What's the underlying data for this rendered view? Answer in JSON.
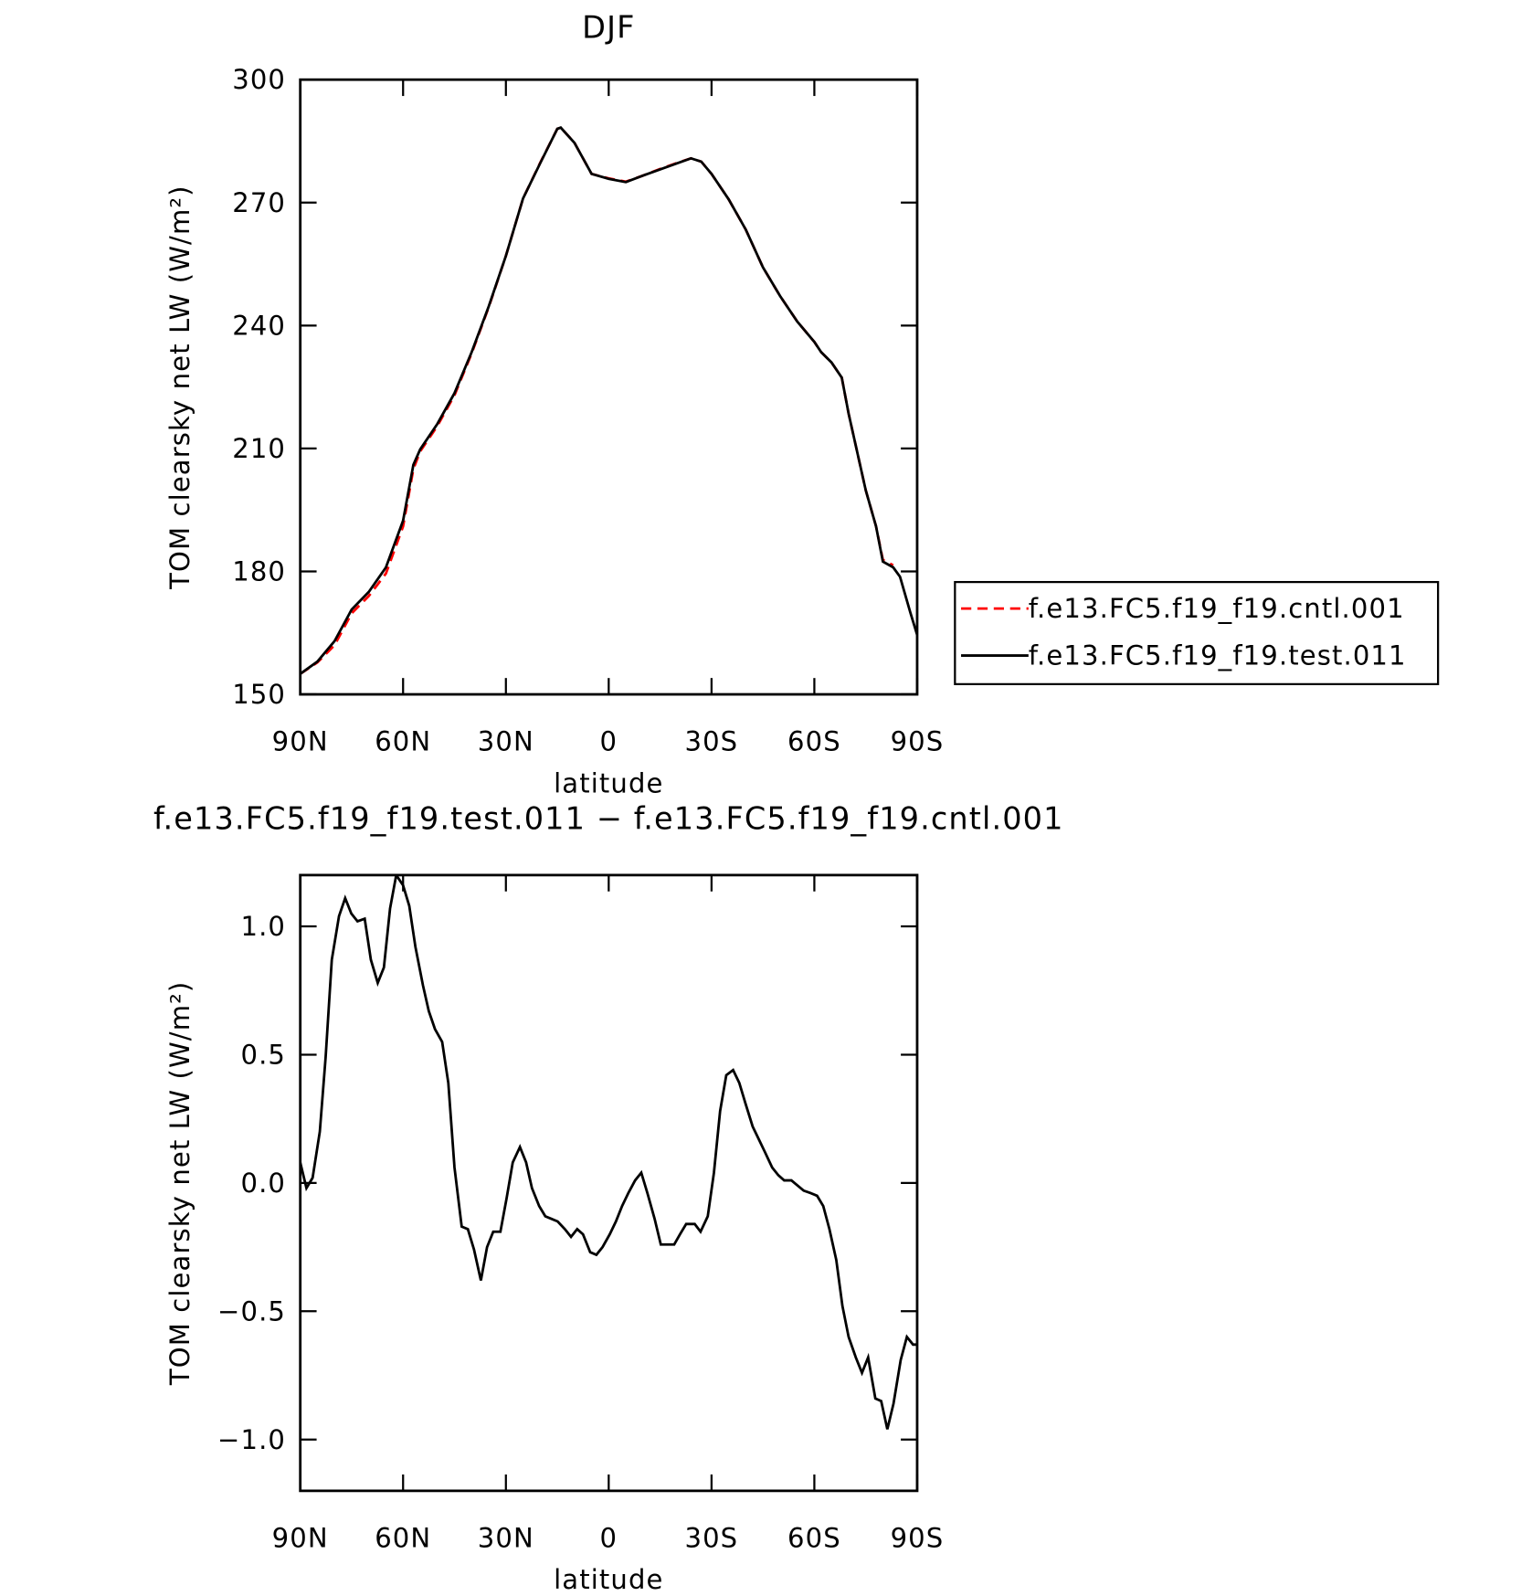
{
  "chart_data": [
    {
      "type": "line",
      "title": "DJF",
      "x_label": "latitude",
      "y_label": "TOM clearsky net LW (W/m²)",
      "x": [
        90,
        85,
        80,
        75,
        70,
        65,
        60,
        57,
        55,
        50,
        45,
        40,
        35,
        30,
        25,
        20,
        15,
        14,
        10,
        5,
        0,
        -5,
        -10,
        -15,
        -20,
        -24,
        -27,
        -30,
        -35,
        -40,
        -45,
        -50,
        -55,
        -60,
        -62,
        -65,
        -68,
        -70,
        -75,
        -78,
        -80,
        -83,
        -85,
        -88,
        -90
      ],
      "series": [
        {
          "name": "f.e13.FC5.f19_f19.cntl.001",
          "color": "#ff0000",
          "linestyle": "dashed",
          "values": [
            155,
            157.8,
            162,
            169.8,
            174,
            179.5,
            191,
            205,
            209.3,
            215.5,
            223,
            233.2,
            244.5,
            257,
            271,
            279.7,
            288,
            288.3,
            284.6,
            277,
            275.9,
            275.1,
            276.6,
            278.2,
            279.7,
            280.8,
            280,
            277,
            270.8,
            263.4,
            254.2,
            247.2,
            241,
            236,
            233.5,
            231,
            227.3,
            218.5,
            199.8,
            191,
            182.8,
            181.5,
            null,
            null,
            null
          ]
        },
        {
          "name": "f.e13.FC5.f19_f19.test.011",
          "color": "#000000",
          "linestyle": "solid",
          "values": [
            155,
            158,
            163,
            170.7,
            175,
            181,
            192.4,
            206,
            209.8,
            216,
            223.5,
            233.5,
            244.7,
            257,
            271,
            279.6,
            288,
            288.3,
            284.6,
            277,
            275.8,
            275,
            276.6,
            278.1,
            279.6,
            280.8,
            280,
            277,
            270.8,
            263.4,
            254.2,
            247.2,
            241,
            236,
            233.5,
            231,
            227.3,
            218.5,
            199.8,
            191,
            182.4,
            181,
            178.7,
            170,
            164.5
          ]
        }
      ],
      "xlim": [
        90,
        -90
      ],
      "ylim": [
        150,
        300
      ],
      "xticks": [
        {
          "value": 90,
          "label": "90N"
        },
        {
          "value": 60,
          "label": "60N"
        },
        {
          "value": 30,
          "label": "30N"
        },
        0,
        {
          "value": -30,
          "label": "30S"
        },
        {
          "value": -60,
          "label": "60S"
        },
        {
          "value": -90,
          "label": "90S"
        }
      ],
      "yticks": [
        150,
        180,
        210,
        240,
        270,
        300
      ],
      "legend": "right"
    },
    {
      "type": "line",
      "title": "f.e13.FC5.f19_f19.test.011 − f.e13.FC5.f19_f19.cntl.001",
      "x_label": "latitude",
      "y_label": "TOM clearsky net LW (W/m²)",
      "x": [
        90,
        88.2,
        86.4,
        84.3,
        82.6,
        80.8,
        78.7,
        76.9,
        75.1,
        73.3,
        71.2,
        69.4,
        67.4,
        65.6,
        63.8,
        62,
        60,
        58.2,
        56.4,
        54.2,
        52.5,
        50.7,
        48.6,
        46.8,
        45,
        42.9,
        41.1,
        39.3,
        37.3,
        35.5,
        33.7,
        31.6,
        29.8,
        28,
        25.9,
        24.1,
        22.4,
        20.3,
        18.5,
        16.7,
        14.9,
        12.8,
        11,
        9.2,
        7.5,
        5.4,
        3.6,
        1.8,
        -0.3,
        -2.1,
        -3.9,
        -5.7,
        -7.7,
        -9.5,
        -11.3,
        -13.4,
        -15.2,
        -17,
        -19.1,
        -20.8,
        -22.6,
        -25.1,
        -26.8,
        -28.9,
        -30.7,
        -32.5,
        -34.3,
        -36.3,
        -38.1,
        -39.9,
        -42,
        -43.8,
        -45.6,
        -47.7,
        -49.5,
        -51.2,
        -53.3,
        -55.1,
        -56.9,
        -59,
        -60.8,
        -62.6,
        -64.4,
        -66.4,
        -68.2,
        -70,
        -72.1,
        -73.9,
        -75.7,
        -77.8,
        -79.5,
        -81.3,
        -83.1,
        -85.2,
        -87,
        -88.8,
        -90
      ],
      "series": [
        {
          "color": "#000000",
          "linestyle": "solid",
          "values": [
            0.08,
            -0.02,
            0.02,
            0.2,
            0.49,
            0.87,
            1.04,
            1.11,
            1.05,
            1.02,
            1.03,
            0.87,
            0.78,
            0.84,
            1.07,
            1.2,
            1.16,
            1.08,
            0.92,
            0.77,
            0.67,
            0.6,
            0.55,
            0.39,
            0.06,
            -0.17,
            -0.18,
            -0.26,
            -0.38,
            -0.25,
            -0.19,
            -0.19,
            -0.06,
            0.08,
            0.14,
            0.08,
            -0.02,
            -0.09,
            -0.13,
            -0.14,
            -0.15,
            -0.18,
            -0.21,
            -0.18,
            -0.2,
            -0.27,
            -0.28,
            -0.25,
            -0.2,
            -0.15,
            -0.09,
            -0.04,
            0.01,
            0.04,
            -0.04,
            -0.14,
            -0.24,
            -0.24,
            -0.24,
            -0.2,
            -0.16,
            -0.16,
            -0.19,
            -0.13,
            0.04,
            0.28,
            0.42,
            0.44,
            0.39,
            0.31,
            0.22,
            0.17,
            0.12,
            0.06,
            0.03,
            0.01,
            0.01,
            -0.01,
            -0.03,
            -0.04,
            -0.05,
            -0.09,
            -0.18,
            -0.3,
            -0.48,
            -0.6,
            -0.68,
            -0.74,
            -0.68,
            -0.84,
            -0.85,
            -0.96,
            -0.86,
            -0.69,
            -0.6,
            -0.63,
            -0.63
          ]
        }
      ],
      "xlim": [
        90,
        -90
      ],
      "ylim": [
        -1.2,
        1.2
      ],
      "xticks": [
        {
          "value": 90,
          "label": "90N"
        },
        {
          "value": 60,
          "label": "60N"
        },
        {
          "value": 30,
          "label": "30N"
        },
        0,
        {
          "value": -30,
          "label": "30S"
        },
        {
          "value": -60,
          "label": "60S"
        },
        {
          "value": -90,
          "label": "90S"
        }
      ],
      "yticks": [
        {
          "value": -1,
          "label": "−1.0"
        },
        {
          "value": -0.5,
          "label": "−0.5"
        },
        {
          "value": 0,
          "label": "0.0"
        },
        0.5,
        {
          "value": 1,
          "label": "1.0"
        }
      ]
    }
  ]
}
